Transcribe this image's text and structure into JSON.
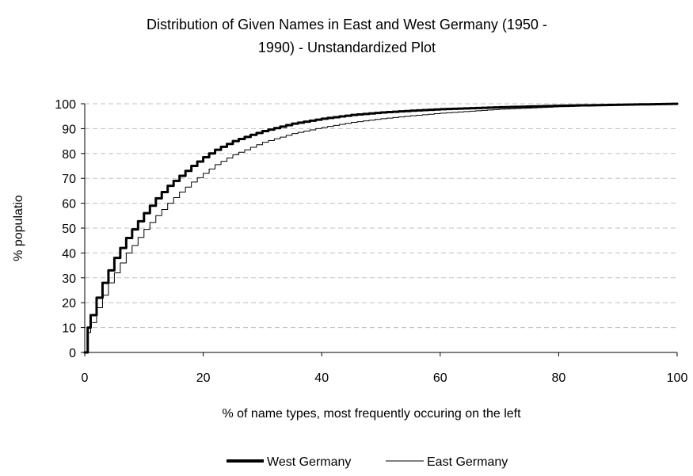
{
  "chart_data": {
    "type": "line",
    "title_lines": [
      "Distribution of Given Names in East and West Germany (1950 -",
      "1990) - Unstandardized Plot"
    ],
    "xlabel": "% of name types, most frequently occuring on the left",
    "ylabel": "% populatio",
    "xlim": [
      0,
      100
    ],
    "ylim": [
      0,
      100
    ],
    "x_ticks": [
      "0",
      "20",
      "40",
      "60",
      "80",
      "100"
    ],
    "y_ticks": [
      "0",
      "10",
      "20",
      "30",
      "40",
      "50",
      "60",
      "70",
      "80",
      "90",
      "100"
    ],
    "grid": true,
    "legend_position": "bottom",
    "series": [
      {
        "name": "West Germany",
        "color": "#000000",
        "line_style": "thick",
        "x": [
          0,
          0.5,
          1,
          2,
          3,
          4,
          5,
          6,
          7,
          8,
          10,
          12,
          14,
          16,
          18,
          20,
          22,
          25,
          28,
          30,
          35,
          40,
          45,
          50,
          55,
          60,
          65,
          70,
          80,
          90,
          100
        ],
        "y": [
          0,
          10,
          15,
          22,
          28,
          33,
          38,
          42,
          46,
          49.5,
          56,
          62,
          67,
          71,
          75,
          78.5,
          81.5,
          85,
          87.5,
          89,
          92,
          94,
          95.5,
          96.5,
          97.2,
          97.8,
          98.2,
          98.6,
          99.2,
          99.6,
          100
        ]
      },
      {
        "name": "East Germany",
        "color": "#000000",
        "line_style": "thin",
        "x": [
          0,
          0.5,
          1,
          2,
          3,
          4,
          5,
          6,
          7,
          8,
          10,
          12,
          14,
          16,
          18,
          20,
          22,
          25,
          28,
          30,
          35,
          40,
          45,
          50,
          55,
          60,
          65,
          70,
          80,
          90,
          100
        ],
        "y": [
          0,
          8,
          12,
          18,
          23,
          28,
          32,
          36,
          40,
          43,
          49.5,
          55,
          60,
          64.5,
          68.5,
          72,
          75.5,
          79.5,
          82.5,
          84.5,
          88,
          90.5,
          92.5,
          94,
          95.2,
          96.2,
          97,
          97.8,
          98.8,
          99.5,
          100
        ]
      }
    ]
  }
}
